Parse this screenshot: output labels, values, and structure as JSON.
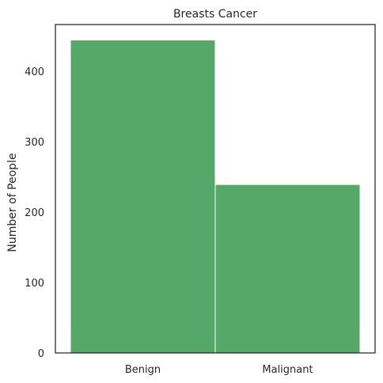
{
  "chart_data": {
    "type": "bar",
    "title": "Breasts Cancer",
    "xlabel": "",
    "ylabel": "Number of People",
    "categories": [
      "Benign",
      "Malignant"
    ],
    "values": [
      444,
      239
    ],
    "ylim": [
      0,
      466
    ],
    "yticks": [
      0,
      100,
      200,
      300,
      400
    ],
    "grid": false,
    "bar_color": "#55a868",
    "frame_color": "#262626"
  }
}
